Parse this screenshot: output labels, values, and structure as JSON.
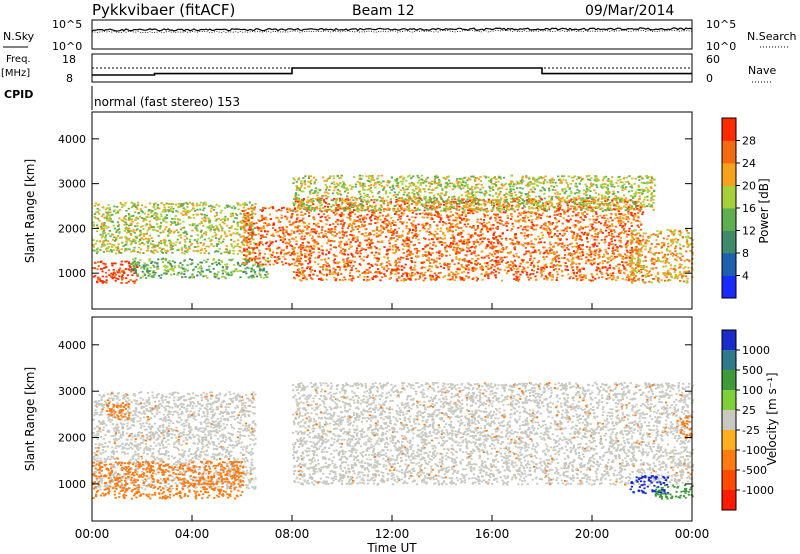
{
  "header": {
    "station": "Pykkvibaer (fitACF)",
    "beam": "Beam 12",
    "date": "09/Mar/2014"
  },
  "top_panels": {
    "nsky_label": "N.Sky",
    "nsearch_label": "N.Search",
    "nave_label": "Nave",
    "freq_label_1": "Freq.",
    "freq_label_2": "[MHz]",
    "cpid_label": "CPID",
    "cpid_text": "normal (fast stereo) 153",
    "noise_ticks_left": [
      "10^5",
      "10^0"
    ],
    "noise_ticks_right": [
      "10^5",
      "10^0"
    ],
    "freq_ticks": [
      "18",
      "8"
    ],
    "nave_ticks": [
      "60",
      "0"
    ],
    "frequency_mhz": [
      {
        "t_start": 0.0,
        "t_end": 2.5,
        "value": 10.5
      },
      {
        "t_start": 2.5,
        "t_end": 8.0,
        "value": 11.0
      },
      {
        "t_start": 8.0,
        "t_end": 18.0,
        "value": 13.0
      },
      {
        "t_start": 18.0,
        "t_end": 24.0,
        "value": 11.0
      }
    ]
  },
  "chart_data": [
    {
      "type": "heatmap",
      "name": "power",
      "ylabel": "Slant Range [km]",
      "xlabel": "",
      "yticks": [
        "1000",
        "2000",
        "3000",
        "4000"
      ],
      "ylim": [
        200,
        4600
      ],
      "xlim": [
        0,
        24
      ],
      "colorbar": {
        "label": "Power [dB]",
        "ticks": [
          "4",
          "8",
          "12",
          "16",
          "20",
          "24",
          "28"
        ],
        "colors": [
          "#1a2bff",
          "#1e5fb0",
          "#3f8a6a",
          "#5fae50",
          "#a7cf3a",
          "#f6a21a",
          "#f46a12",
          "#ff2a00"
        ]
      },
      "features": [
        {
          "t_start": 0.0,
          "t_end": 1.8,
          "r_low": 800,
          "r_high": 1300,
          "level": 28
        },
        {
          "t_start": 1.5,
          "t_end": 7.0,
          "r_low": 900,
          "r_high": 1350,
          "level": 12
        },
        {
          "t_start": 0.0,
          "t_end": 6.5,
          "r_low": 1450,
          "r_high": 2600,
          "level": 16
        },
        {
          "t_start": 6.0,
          "t_end": 8.0,
          "r_low": 1200,
          "r_high": 2500,
          "level": 24
        },
        {
          "t_start": 8.0,
          "t_end": 22.0,
          "r_low": 850,
          "r_high": 2700,
          "level": 24
        },
        {
          "t_start": 8.0,
          "t_end": 22.5,
          "r_low": 2400,
          "r_high": 3200,
          "level": 16
        },
        {
          "t_start": 21.5,
          "t_end": 24.0,
          "r_low": 800,
          "r_high": 2000,
          "level": 20
        }
      ]
    },
    {
      "type": "heatmap",
      "name": "velocity",
      "ylabel": "Slant Range [km]",
      "xlabel": "Time UT",
      "yticks": [
        "1000",
        "2000",
        "3000",
        "4000"
      ],
      "ylim": [
        200,
        4600
      ],
      "xlim": [
        0,
        24
      ],
      "xticks": [
        "00:00",
        "04:00",
        "08:00",
        "12:00",
        "16:00",
        "20:00",
        "00:00"
      ],
      "colorbar": {
        "label": "Velocity [m s⁻¹]",
        "ticks": [
          "1000",
          "500",
          "100",
          "25",
          "-25",
          "-100",
          "-500",
          "-1000"
        ],
        "colors": [
          "#1a2bcc",
          "#2f7a8a",
          "#3f9a3a",
          "#7fcf3a",
          "#c8c8c0",
          "#ffb020",
          "#ff7a10",
          "#ff4a00",
          "#ff1a00"
        ]
      },
      "features": [
        {
          "t_start": 0.0,
          "t_end": 6.5,
          "r_low": 900,
          "r_high": 3000,
          "level": 0
        },
        {
          "t_start": 0.0,
          "t_end": 6.0,
          "r_low": 700,
          "r_high": 1500,
          "level": -200
        },
        {
          "t_start": 0.5,
          "t_end": 1.5,
          "r_low": 2400,
          "r_high": 2800,
          "level": -200
        },
        {
          "t_start": 8.0,
          "t_end": 24.0,
          "r_low": 1000,
          "r_high": 3200,
          "level": 0
        },
        {
          "t_start": 21.5,
          "t_end": 23.0,
          "r_low": 800,
          "r_high": 1200,
          "level": 1000
        },
        {
          "t_start": 22.5,
          "t_end": 24.0,
          "r_low": 700,
          "r_high": 1000,
          "level": 200
        },
        {
          "t_start": 23.5,
          "t_end": 24.0,
          "r_low": 2000,
          "r_high": 2500,
          "level": -200
        }
      ]
    }
  ]
}
